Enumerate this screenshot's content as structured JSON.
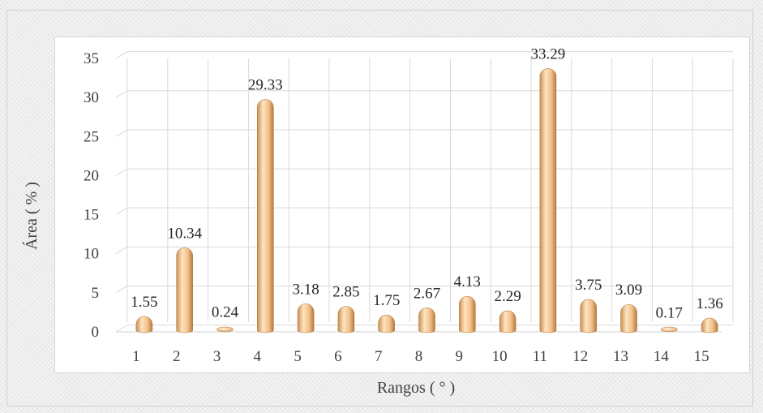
{
  "chart_data": {
    "type": "bar",
    "title": "",
    "xlabel": "Rangos ( ° )",
    "ylabel": "Área ( % )",
    "categories": [
      "1",
      "2",
      "3",
      "4",
      "5",
      "6",
      "7",
      "8",
      "9",
      "10",
      "11",
      "12",
      "13",
      "14",
      "15"
    ],
    "values": [
      1.55,
      10.34,
      0.24,
      29.33,
      3.18,
      2.85,
      1.75,
      2.67,
      4.13,
      2.29,
      33.29,
      3.75,
      3.09,
      0.17,
      1.36
    ],
    "data_labels": [
      "1.55",
      "10.34",
      "0.24",
      "29.33",
      "3.18",
      "2.85",
      "1.75",
      "2.67",
      "4.13",
      "2.29",
      "33.29",
      "3.75",
      "3.09",
      "0.17",
      "1.36"
    ],
    "yticks": [
      0,
      5,
      10,
      15,
      20,
      25,
      30,
      35
    ],
    "ylim": [
      0,
      35
    ],
    "grid": true,
    "legend": "none",
    "bar_style": "3d-cylinder",
    "colors": {
      "bar_light": "#fde4c0",
      "bar_mid": "#f2c08a",
      "bar_dark": "#c98f52",
      "grid": "#d9d9d9"
    }
  }
}
